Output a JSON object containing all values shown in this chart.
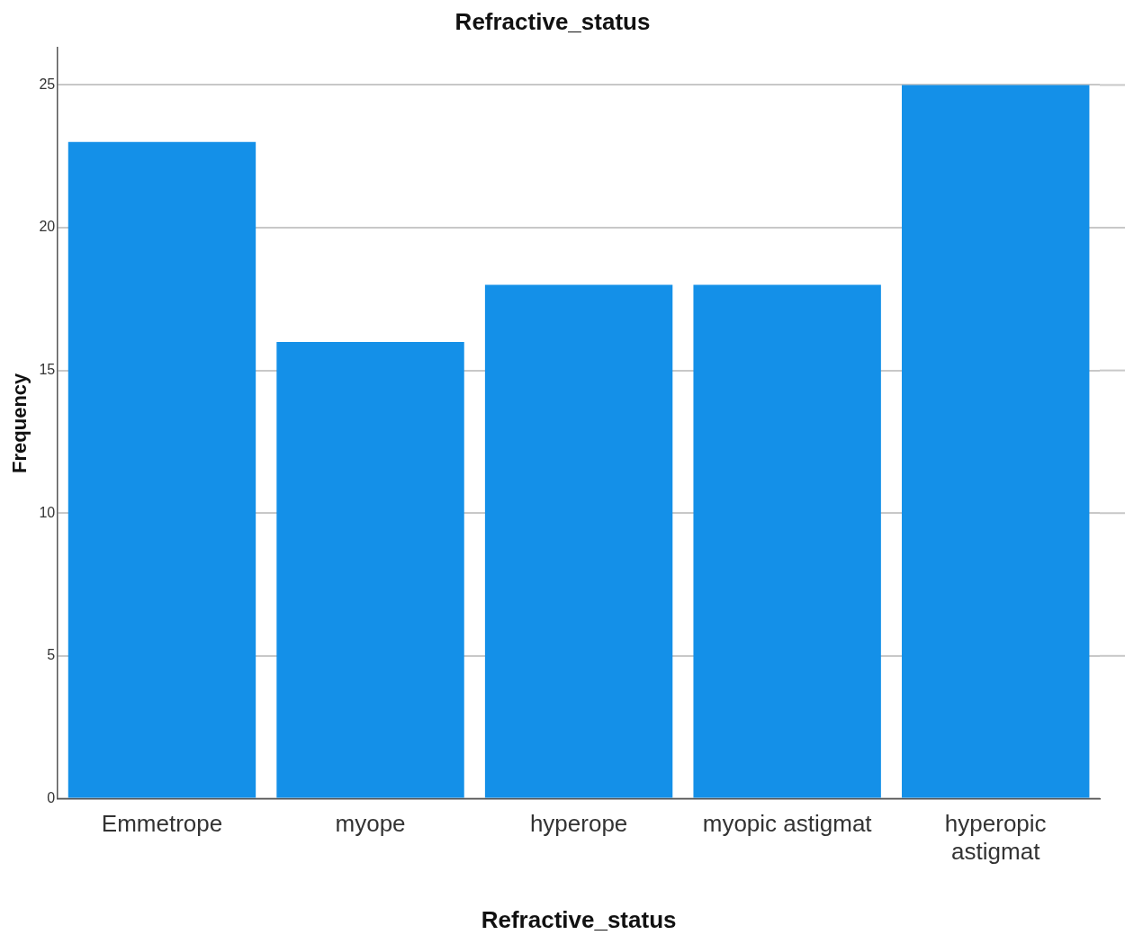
{
  "chart_data": {
    "type": "bar",
    "title": "Refractive_status",
    "xlabel": "Refractive_status",
    "ylabel": "Frequency",
    "categories": [
      "Emmetrope",
      "myope",
      "hyperope",
      "myopic astigmat",
      "hyperopic astigmat"
    ],
    "values": [
      23,
      16,
      18,
      18,
      25
    ],
    "color": "#1490e8",
    "ylim": [
      0,
      26.3
    ],
    "yticks": [
      0,
      5,
      10,
      15,
      20,
      25
    ],
    "grid": "y",
    "legend": false
  }
}
